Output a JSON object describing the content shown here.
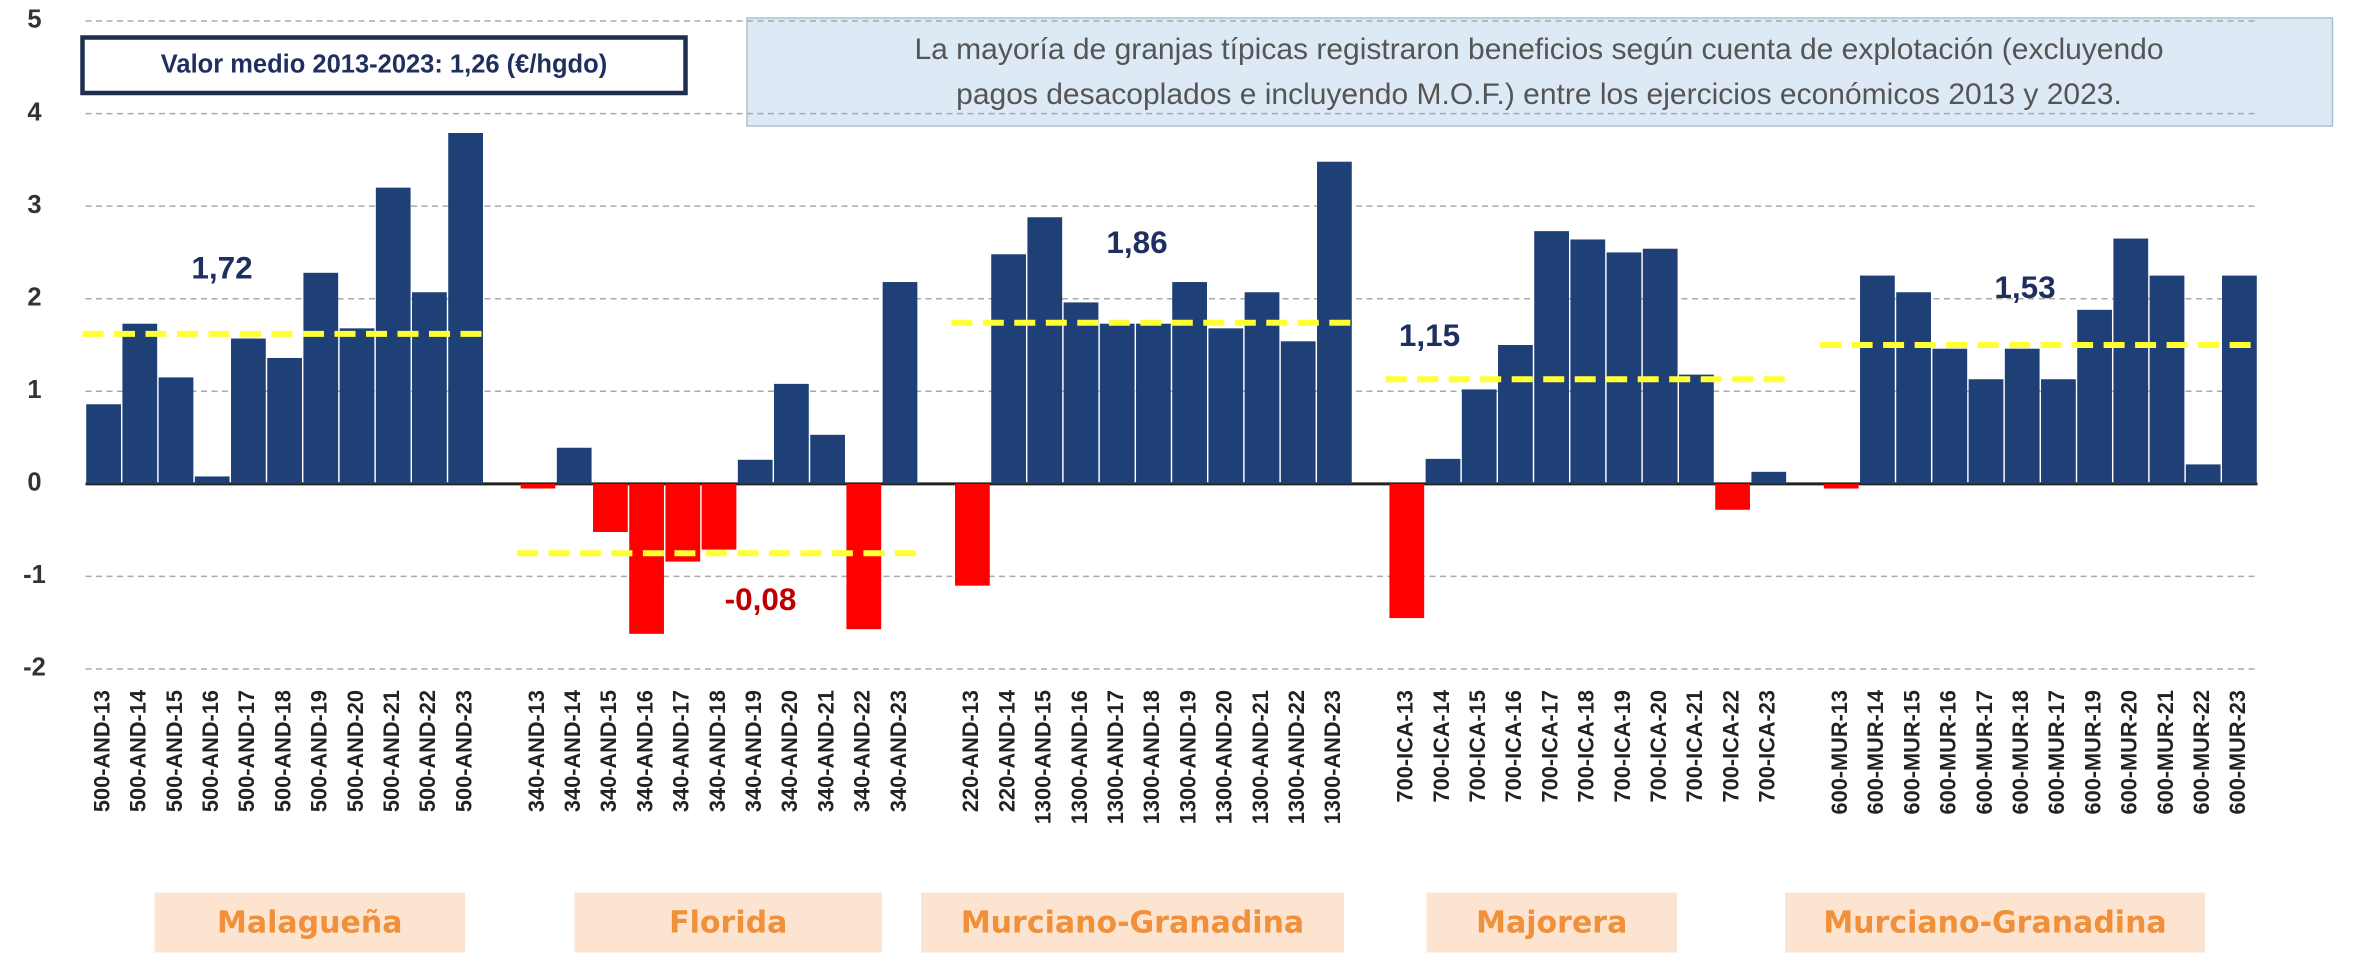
{
  "chart_data": {
    "type": "bar",
    "color": "#1f3f77",
    "negative_color": "#ff0000",
    "ylim": [
      -2,
      5
    ],
    "yticks": [
      -2,
      -1,
      0,
      1,
      2,
      3,
      4,
      5
    ],
    "grid": true,
    "summary": "Valor medio 2013-2023: 1,26 (€/hgdo)",
    "note": [
      "La mayoría de granjas típicas registraron beneficios según cuenta de explotación (excluyendo",
      "pagos desacoplados e incluyendo M.O.F.) entre los ejercicios económicos 2013 y 2023."
    ],
    "categories": [
      "500-AND-13",
      "500-AND-14",
      "500-AND-15",
      "500-AND-16",
      "500-AND-17",
      "500-AND-18",
      "500-AND-19",
      "500-AND-20",
      "500-AND-21",
      "500-AND-22",
      "500-AND-23",
      null,
      "340-AND-13",
      "340-AND-14",
      "340-AND-15",
      "340-AND-16",
      "340-AND-17",
      "340-AND-18",
      "340-AND-19",
      "340-AND-20",
      "340-AND-21",
      "340-AND-22",
      "340-AND-23",
      null,
      "220-AND-13",
      "220-AND-14",
      "1300-AND-15",
      "1300-AND-16",
      "1300-AND-17",
      "1300-AND-18",
      "1300-AND-19",
      "1300-AND-20",
      "1300-AND-21",
      "1300-AND-22",
      "1300-AND-23",
      null,
      "700-ICA-13",
      "700-ICA-14",
      "700-ICA-15",
      "700-ICA-16",
      "700-ICA-17",
      "700-ICA-18",
      "700-ICA-19",
      "700-ICA-20",
      "700-ICA-21",
      "700-ICA-22",
      "700-ICA-23",
      null,
      "600-MUR-13",
      "600-MUR-14",
      "600-MUR-15",
      "600-MUR-16",
      "600-MUR-17",
      "600-MUR-18",
      "600-MUR-17",
      "600-MUR-19",
      "600-MUR-20",
      "600-MUR-21",
      "600-MUR-22",
      "600-MUR-23"
    ],
    "values": [
      0.86,
      1.73,
      1.15,
      0.08,
      1.57,
      1.36,
      2.28,
      1.68,
      3.2,
      2.07,
      3.79,
      null,
      -0.05,
      0.39,
      -0.52,
      -1.62,
      -0.84,
      -0.71,
      0.26,
      1.08,
      0.53,
      -1.57,
      2.18,
      null,
      -1.1,
      2.48,
      2.88,
      1.96,
      1.73,
      1.73,
      2.18,
      1.68,
      2.07,
      1.54,
      3.48,
      null,
      -1.45,
      0.27,
      1.02,
      1.5,
      2.73,
      2.64,
      2.5,
      2.54,
      1.18,
      -0.28,
      0.13,
      null,
      -0.05,
      2.25,
      2.07,
      1.46,
      1.13,
      1.46,
      1.13,
      1.88,
      2.65,
      2.25,
      0.21,
      2.25
    ],
    "reference_line_color": "#ffff33",
    "groups": [
      {
        "name": "Malagueña",
        "reference_line": 1.62,
        "annotation": "1,72",
        "annotation_color": "#1f2f5f"
      },
      {
        "name": "Florida",
        "reference_line": -0.75,
        "annotation": "-0,08",
        "annotation_color": "#c00000"
      },
      {
        "name": "Murciano-Granadina",
        "reference_line": 1.74,
        "annotation": "1,86",
        "annotation_color": "#1f2f5f"
      },
      {
        "name": "Majorera",
        "reference_line": 1.13,
        "annotation": "1,15",
        "annotation_color": "#1f2f5f"
      },
      {
        "name": "Murciano-Granadina",
        "reference_line": 1.5,
        "annotation": "1,53",
        "annotation_color": "#1f2f5f"
      }
    ]
  }
}
